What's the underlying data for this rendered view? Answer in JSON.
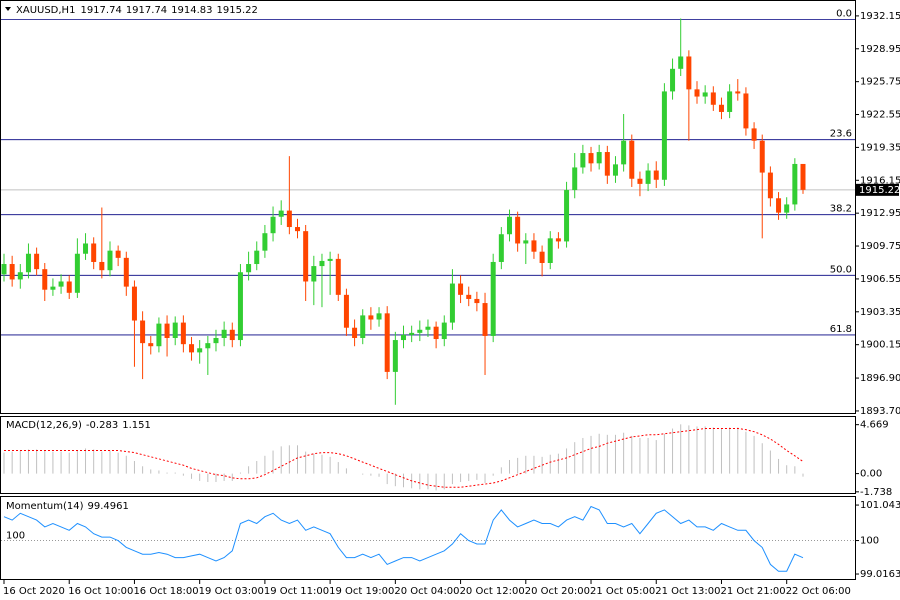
{
  "chart_data": [
    {
      "type": "candlestick",
      "symbol": "XAUUSD,H1",
      "up_color": "#32cd32",
      "down_color": "#ff4500",
      "ylim": [
        1893.5,
        1933.6
      ],
      "yticks": [
        1932.15,
        1928.95,
        1925.75,
        1922.55,
        1919.35,
        1916.15,
        1912.95,
        1909.75,
        1906.55,
        1903.35,
        1900.15,
        {
          "value": 1896.9,
          "label": "1896.90"
        },
        {
          "value": 1893.7,
          "label": "1893.70"
        }
      ],
      "categories": [
        "16 Oct 2020",
        null,
        null,
        null,
        null,
        null,
        null,
        null,
        "16 Oct 10:00",
        null,
        null,
        null,
        null,
        null,
        null,
        null,
        "16 Oct 18:00",
        null,
        null,
        null,
        null,
        null,
        null,
        null,
        "19 Oct 03:00",
        null,
        null,
        null,
        null,
        null,
        null,
        null,
        "19 Oct 11:00",
        null,
        null,
        null,
        null,
        null,
        null,
        null,
        "19 Oct 19:00",
        null,
        null,
        null,
        null,
        null,
        null,
        null,
        "20 Oct 04:00",
        null,
        null,
        null,
        null,
        null,
        null,
        null,
        "20 Oct 12:00",
        null,
        null,
        null,
        null,
        null,
        null,
        null,
        "20 Oct 20:00",
        null,
        null,
        null,
        null,
        null,
        null,
        null,
        "21 Oct 05:00",
        null,
        null,
        null,
        null,
        null,
        null,
        null,
        "21 Oct 13:00",
        null,
        null,
        null,
        null,
        null,
        null,
        null,
        "21 Oct 21:00",
        null,
        null,
        null,
        null,
        null,
        null,
        null,
        "22 Oct 06:00",
        null,
        null
      ],
      "open": [
        1907.0,
        1908.0,
        1906.5,
        1907.2,
        1909.0,
        1907.5,
        1905.5,
        1905.8,
        1906.3,
        1905.2,
        1909.0,
        1910.0,
        1908.2,
        1907.4,
        1909.3,
        1908.6,
        1905.8,
        1902.5,
        1900.3,
        1900.0,
        1902.2,
        1900.8,
        1902.3,
        1900.2,
        1899.4,
        1899.8,
        1900.3,
        1900.8,
        1901.6,
        1900.6,
        1907.2,
        1908.0,
        1909.3,
        1911.0,
        1912.6,
        1913.2,
        1911.6,
        1911.2,
        1906.3,
        1907.8,
        1908.3,
        1908.5,
        1905.0,
        1901.8,
        1900.8,
        1903.0,
        1902.6,
        1903.2,
        1897.5,
        1900.6,
        1901.1,
        1901.3,
        1901.6,
        1901.9,
        1900.7,
        1902.3,
        1906.1,
        1905.0,
        1904.6,
        1904.2,
        1901.0,
        1908.2,
        1910.9,
        1912.6,
        1910.0,
        1910.3,
        1909.2,
        1908.1,
        1910.5,
        1910.2,
        1915.2,
        1917.4,
        1918.8,
        1917.8,
        1918.9,
        1916.6,
        1917.7,
        1920.0,
        1916.3,
        1915.8,
        1917.1,
        1916.2,
        1924.8,
        1927.0,
        1928.2,
        1925.0,
        1924.3,
        1924.7,
        1923.5,
        1922.8,
        1924.8,
        1924.6,
        1921.2,
        1920.0,
        1916.9,
        1914.4,
        1913.0,
        1913.8,
        1917.74
      ],
      "high": [
        1909.0,
        1908.8,
        1908.0,
        1910.0,
        1909.6,
        1908.1,
        1906.6,
        1907.0,
        1906.9,
        1910.5,
        1911.0,
        1910.6,
        1913.5,
        1910.2,
        1909.8,
        1909.2,
        1906.4,
        1903.4,
        1901.0,
        1902.8,
        1903.0,
        1902.9,
        1903.0,
        1900.9,
        1900.6,
        1901.0,
        1901.6,
        1902.4,
        1902.3,
        1908.0,
        1909.2,
        1910.2,
        1911.8,
        1913.6,
        1914.2,
        1918.5,
        1912.4,
        1911.8,
        1908.8,
        1909.0,
        1909.2,
        1909.0,
        1905.6,
        1902.6,
        1903.6,
        1903.8,
        1903.8,
        1903.9,
        1901.4,
        1902.0,
        1902.0,
        1902.5,
        1902.6,
        1902.4,
        1903.0,
        1907.5,
        1906.9,
        1905.8,
        1905.3,
        1905.2,
        1909.0,
        1911.6,
        1913.3,
        1913.1,
        1911.0,
        1911.0,
        1909.8,
        1911.2,
        1911.1,
        1916.0,
        1918.8,
        1919.6,
        1919.4,
        1919.6,
        1919.5,
        1918.5,
        1922.6,
        1920.6,
        1917.0,
        1917.8,
        1918.0,
        1925.6,
        1928.0,
        1931.9,
        1928.8,
        1925.8,
        1925.4,
        1925.3,
        1924.2,
        1925.5,
        1926.0,
        1925.2,
        1921.8,
        1920.6,
        1917.5,
        1915.0,
        1914.5,
        1918.3,
        1917.74
      ],
      "low": [
        1906.3,
        1905.8,
        1905.6,
        1906.6,
        1906.9,
        1904.4,
        1904.9,
        1905.1,
        1904.6,
        1904.7,
        1908.4,
        1907.5,
        1906.6,
        1906.8,
        1907.8,
        1904.9,
        1898.0,
        1896.8,
        1899.2,
        1899.4,
        1899.0,
        1900.1,
        1899.4,
        1898.6,
        1898.3,
        1897.2,
        1899.5,
        1900.0,
        1899.9,
        1900.0,
        1906.4,
        1907.4,
        1908.6,
        1910.2,
        1911.8,
        1910.9,
        1910.5,
        1904.4,
        1904.0,
        1903.8,
        1905.0,
        1904.4,
        1901.0,
        1900.0,
        1900.2,
        1901.6,
        1901.9,
        1896.8,
        1894.3,
        1899.8,
        1900.4,
        1900.5,
        1900.9,
        1899.8,
        1900.0,
        1901.6,
        1904.2,
        1903.9,
        1903.4,
        1897.2,
        1900.4,
        1907.5,
        1910.2,
        1909.2,
        1908.0,
        1908.5,
        1906.8,
        1907.5,
        1909.5,
        1909.6,
        1914.4,
        1916.8,
        1917.0,
        1917.2,
        1915.8,
        1915.9,
        1917.0,
        1915.5,
        1914.6,
        1915.1,
        1915.4,
        1915.6,
        1924.0,
        1926.3,
        1920.0,
        1923.6,
        1923.6,
        1922.9,
        1922.1,
        1922.2,
        1923.9,
        1920.5,
        1919.2,
        1910.5,
        1913.6,
        1912.3,
        1912.4,
        1913.2,
        1914.83
      ],
      "close": [
        1908.0,
        1906.5,
        1907.2,
        1909.0,
        1907.5,
        1905.5,
        1905.8,
        1906.3,
        1905.2,
        1909.0,
        1910.0,
        1908.2,
        1907.4,
        1909.3,
        1908.6,
        1905.8,
        1902.5,
        1900.3,
        1900.0,
        1902.2,
        1900.8,
        1902.3,
        1900.2,
        1899.4,
        1899.8,
        1900.3,
        1900.8,
        1901.6,
        1900.6,
        1907.2,
        1908.0,
        1909.3,
        1911.0,
        1912.6,
        1913.2,
        1911.6,
        1911.2,
        1906.3,
        1907.8,
        1908.3,
        1908.5,
        1905.0,
        1901.8,
        1900.8,
        1903.0,
        1902.6,
        1903.2,
        1897.5,
        1900.6,
        1901.1,
        1901.3,
        1901.6,
        1901.9,
        1900.7,
        1902.3,
        1906.1,
        1905.0,
        1904.6,
        1904.2,
        1901.0,
        1908.2,
        1910.9,
        1912.6,
        1910.0,
        1910.3,
        1909.2,
        1908.1,
        1910.5,
        1910.2,
        1915.2,
        1917.4,
        1918.8,
        1917.8,
        1918.9,
        1916.6,
        1917.7,
        1920.0,
        1916.3,
        1915.8,
        1917.1,
        1916.2,
        1924.8,
        1927.0,
        1928.2,
        1925.0,
        1924.3,
        1924.7,
        1923.5,
        1922.8,
        1924.8,
        1924.6,
        1921.2,
        1920.0,
        1916.9,
        1914.4,
        1913.0,
        1913.8,
        1917.74,
        1915.22
      ],
      "fibo_color": "#000080",
      "fibo": [
        {
          "label": "0.0",
          "price": 1931.8
        },
        {
          "label": "23.6",
          "price": 1920.1
        },
        {
          "label": "38.2",
          "price": 1912.8
        },
        {
          "label": "50.0",
          "price": 1906.9
        },
        {
          "label": "61.8",
          "price": 1901.1
        }
      ]
    },
    {
      "type": "macd",
      "title": "MACD(12,26,9)",
      "ylim": [
        -1.85,
        5.4
      ],
      "yticks": [
        4.669,
        {
          "value": 0,
          "label": "0.00"
        },
        -1.738
      ],
      "histogram_color": "#c0c0c0",
      "signal_color": "#ff0000",
      "histogram": [
        2.0,
        2.1,
        2.2,
        2.3,
        2.3,
        2.2,
        2.1,
        2.1,
        2.0,
        2.2,
        2.4,
        2.3,
        2.1,
        2.2,
        2.0,
        1.7,
        1.2,
        0.7,
        0.4,
        0.3,
        0.1,
        0.1,
        -0.2,
        -0.5,
        -0.7,
        -0.8,
        -0.8,
        -0.7,
        -0.7,
        0.1,
        0.7,
        1.2,
        1.7,
        2.2,
        2.6,
        2.7,
        2.7,
        2.1,
        1.9,
        1.8,
        1.6,
        1.1,
        0.5,
        0.0,
        -0.1,
        -0.2,
        -0.3,
        -1.0,
        -1.2,
        -1.3,
        -1.4,
        -1.5,
        -1.5,
        -1.6,
        -1.5,
        -1.0,
        -0.8,
        -0.7,
        -0.6,
        -0.9,
        -0.2,
        0.6,
        1.3,
        1.5,
        1.7,
        1.7,
        1.6,
        1.8,
        1.9,
        2.4,
        3.0,
        3.4,
        3.6,
        3.8,
        3.7,
        3.7,
        3.9,
        3.6,
        3.4,
        3.4,
        3.2,
        3.8,
        4.3,
        4.7,
        4.6,
        4.5,
        4.5,
        4.4,
        4.3,
        4.4,
        4.4,
        4.0,
        3.6,
        2.9,
        2.2,
        1.4,
        0.8,
        0.7,
        -0.283
      ],
      "signal": [
        2.2,
        2.2,
        2.2,
        2.2,
        2.2,
        2.2,
        2.2,
        2.2,
        2.2,
        2.2,
        2.2,
        2.2,
        2.2,
        2.2,
        2.2,
        2.1,
        2.0,
        1.8,
        1.6,
        1.4,
        1.2,
        1.0,
        0.8,
        0.5,
        0.3,
        0.1,
        -0.1,
        -0.2,
        -0.4,
        -0.5,
        -0.5,
        -0.4,
        -0.1,
        0.3,
        0.7,
        1.1,
        1.5,
        1.7,
        1.9,
        2.0,
        2.0,
        1.9,
        1.7,
        1.4,
        1.1,
        0.8,
        0.5,
        0.2,
        -0.1,
        -0.4,
        -0.7,
        -0.9,
        -1.1,
        -1.2,
        -1.3,
        -1.3,
        -1.3,
        -1.2,
        -1.1,
        -1.0,
        -0.9,
        -0.7,
        -0.4,
        -0.1,
        0.2,
        0.5,
        0.8,
        1.1,
        1.3,
        1.5,
        1.8,
        2.1,
        2.4,
        2.6,
        2.9,
        3.1,
        3.3,
        3.5,
        3.6,
        3.7,
        3.7,
        3.8,
        3.9,
        4.0,
        4.1,
        4.2,
        4.3,
        4.3,
        4.3,
        4.3,
        4.3,
        4.2,
        4.0,
        3.7,
        3.3,
        2.8,
        2.2,
        1.7,
        1.151
      ]
    },
    {
      "type": "line",
      "title": "Momentum(14)",
      "ylim": [
        98.87,
        101.28
      ],
      "yticks": [
        101.0433,
        100,
        99.0163
      ],
      "level": 100,
      "color": "#1e90ff",
      "values": [
        100.7,
        100.6,
        100.8,
        100.7,
        100.6,
        100.4,
        100.5,
        100.4,
        100.3,
        100.5,
        100.4,
        100.2,
        100.1,
        100.1,
        100.0,
        99.8,
        99.7,
        99.6,
        99.6,
        99.65,
        99.6,
        99.5,
        99.5,
        99.55,
        99.6,
        99.5,
        99.4,
        99.5,
        99.7,
        100.5,
        100.6,
        100.5,
        100.7,
        100.8,
        100.6,
        100.5,
        100.6,
        100.3,
        100.4,
        100.3,
        100.2,
        99.8,
        99.5,
        99.5,
        99.6,
        99.5,
        99.6,
        99.3,
        99.4,
        99.5,
        99.5,
        99.4,
        99.5,
        99.6,
        99.7,
        99.9,
        100.2,
        100.0,
        99.9,
        99.9,
        100.6,
        100.9,
        100.6,
        100.4,
        100.5,
        100.6,
        100.5,
        100.5,
        100.4,
        100.6,
        100.7,
        100.6,
        101.0,
        100.9,
        100.5,
        100.5,
        100.4,
        100.5,
        100.2,
        100.5,
        100.8,
        100.9,
        100.7,
        100.5,
        100.6,
        100.4,
        100.4,
        100.3,
        100.5,
        100.4,
        100.3,
        100.3,
        100.0,
        99.8,
        99.3,
        99.1,
        99.1,
        99.6,
        99.4961
      ]
    }
  ]
}
